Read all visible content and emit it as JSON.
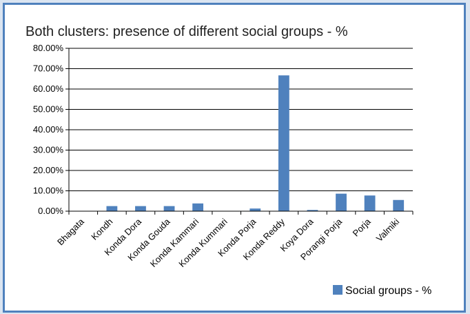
{
  "chart_data": {
    "type": "bar",
    "title": "Both clusters: presence of different social groups - %",
    "categories": [
      "Bhagata",
      "Kondh",
      "Konda Dora",
      "Konda Gouda",
      "Konda Kammari",
      "Konda Kummari",
      "Konda Porja",
      "Konda Reddy",
      "Koya Dora",
      "Porangi Porja",
      "Porja",
      "Valmiki"
    ],
    "series": [
      {
        "name": "Social groups - %",
        "values": [
          0.0,
          2.5,
          2.5,
          2.5,
          3.8,
          0.0,
          1.3,
          66.7,
          0.6,
          8.6,
          7.7,
          5.5
        ]
      }
    ],
    "ylim": [
      0,
      80
    ],
    "ytick_step": 10,
    "ytick_labels": [
      "0.00%",
      "10.00%",
      "20.00%",
      "30.00%",
      "40.00%",
      "50.00%",
      "60.00%",
      "70.00%",
      "80.00%"
    ],
    "grid": true,
    "legend_position": "bottom-right",
    "colors": {
      "bar": "#4f81bd",
      "border": "#4f81bd",
      "background": "#dbe5f1"
    }
  }
}
